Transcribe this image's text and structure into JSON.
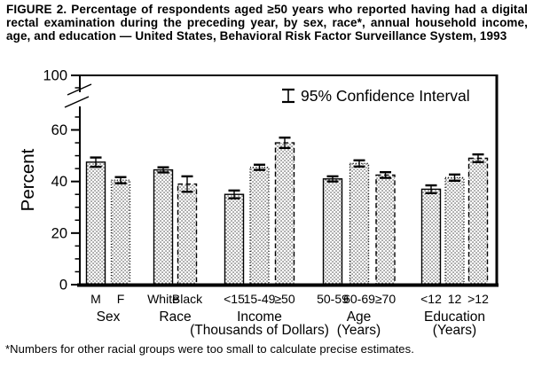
{
  "title": "FIGURE 2. Percentage of respondents aged ≥50 years who reported having had a digital rectal examination during the preceding year, by sex, race*, annual household income, age, and education — United States, Behavioral Risk Factor Surveillance System, 1993",
  "footnote": "*Numbers for other racial groups were too small to calculate precise estimates.",
  "chart_data": {
    "type": "bar",
    "title": "FIGURE 2. Percentage of respondents aged ≥50 years who reported having had a digital rectal examination during the preceding year, by sex, race*, annual household income, age, and education — United States, Behavioral Risk Factor Surveillance System, 1993",
    "ylabel": "Percent",
    "legend": "95% Confidence Interval",
    "error_bars": "95% confidence interval, shown as I-beams centered on each bar top",
    "y_axis": {
      "ylim": [
        0,
        100
      ],
      "labeled_ticks": [
        0,
        20,
        40,
        60,
        100
      ],
      "minor_tick_step": 5,
      "axis_break_between": [
        68,
        93
      ],
      "grid": false
    },
    "legend_position": "top-right inside plot",
    "groups": [
      {
        "label": "Sex",
        "sublabel": "",
        "bars": [
          {
            "category": "M",
            "value": 47.5,
            "ci": 1.8,
            "outline": "solid"
          },
          {
            "category": "F",
            "value": 40.5,
            "ci": 1.2,
            "outline": "dotted"
          }
        ]
      },
      {
        "label": "Race",
        "sublabel": "",
        "bars": [
          {
            "category": "White",
            "value": 44.5,
            "ci": 1.0,
            "outline": "solid"
          },
          {
            "category": "Black",
            "value": 39.0,
            "ci": 3.0,
            "outline": "dashed"
          }
        ]
      },
      {
        "label": "Income",
        "sublabel": "(Thousands of Dollars)",
        "bars": [
          {
            "category": "<15",
            "value": 35.0,
            "ci": 1.5,
            "outline": "solid"
          },
          {
            "category": "15-49",
            "value": 45.5,
            "ci": 1.0,
            "outline": "dotted"
          },
          {
            "category": "≥50",
            "value": 55.0,
            "ci": 2.0,
            "outline": "dashed"
          }
        ]
      },
      {
        "label": "Age",
        "sublabel": "(Years)",
        "bars": [
          {
            "category": "50-59",
            "value": 41.0,
            "ci": 1.0,
            "outline": "solid"
          },
          {
            "category": "60-69",
            "value": 47.0,
            "ci": 1.2,
            "outline": "dotted"
          },
          {
            "category": "≥70",
            "value": 42.5,
            "ci": 1.1,
            "outline": "dashed"
          }
        ]
      },
      {
        "label": "Education",
        "sublabel": "(Years)",
        "bars": [
          {
            "category": "<12",
            "value": 37.0,
            "ci": 1.5,
            "outline": "solid"
          },
          {
            "category": "12",
            "value": 41.5,
            "ci": 1.2,
            "outline": "dotted"
          },
          {
            "category": ">12",
            "value": 49.0,
            "ci": 1.5,
            "outline": "dashed"
          }
        ]
      }
    ],
    "colors": {
      "ink": "#000000",
      "background": "#ffffff",
      "bar_fill": "#ffffff",
      "bar_stipple_dots": "#000000"
    }
  }
}
